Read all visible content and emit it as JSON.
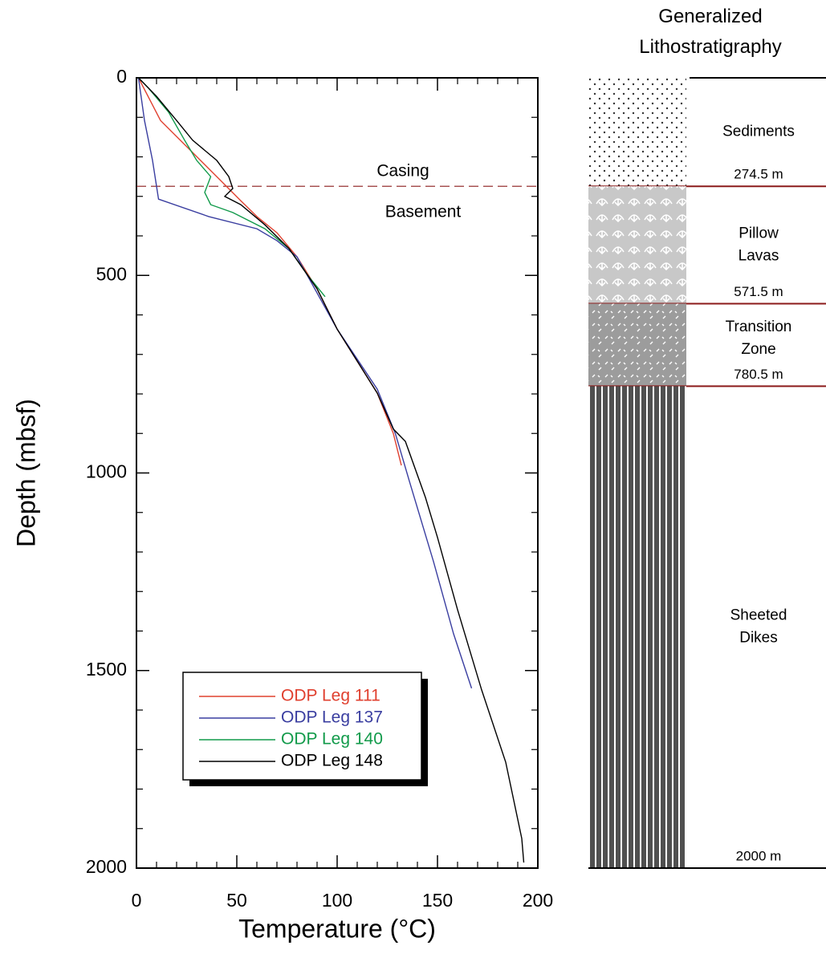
{
  "chart_data": [
    {
      "type": "line",
      "xlabel": "Temperature (°C)",
      "ylabel": "Depth (mbsf)",
      "xlim": [
        0,
        200
      ],
      "xticks": [
        0,
        50,
        100,
        150,
        200
      ],
      "xminorticks": [
        10,
        20,
        30,
        40,
        60,
        70,
        80,
        90,
        110,
        120,
        130,
        140,
        160,
        170,
        180,
        190
      ],
      "ylim": [
        0,
        2000
      ],
      "yticks": [
        0,
        500,
        1000,
        1500,
        2000
      ],
      "yminorticks": [
        100,
        200,
        300,
        400,
        600,
        700,
        800,
        900,
        1100,
        1200,
        1300,
        1400,
        1600,
        1700,
        1800,
        1900
      ],
      "y_inverted": true,
      "legend": "lower left",
      "hline": 274.5,
      "hline_color": "#8b1a1a",
      "annotations": [
        "Casing",
        "Basement"
      ],
      "series": [
        {
          "name": "ODP Leg 111",
          "color": "#e0402f",
          "x": [
            1,
            12,
            28,
            42,
            52,
            60,
            70,
            80,
            90,
            100,
            110,
            120,
            128,
            132
          ],
          "values": [
            0,
            108,
            189,
            260,
            311,
            351,
            392,
            453,
            534,
            636,
            717,
            798,
            900,
            981
          ]
        },
        {
          "name": "ODP Leg 137",
          "color": "#3a3ea0",
          "x": [
            1,
            4,
            8,
            11,
            36,
            60,
            70,
            80,
            100,
            120,
            129,
            136,
            148,
            158,
            167
          ],
          "values": [
            0,
            108,
            209,
            307,
            351,
            382,
            412,
            453,
            636,
            788,
            900,
            1021,
            1224,
            1407,
            1545
          ]
        },
        {
          "name": "ODP Leg 140",
          "color": "#119a4a",
          "x": [
            1,
            6,
            16,
            24,
            30,
            37,
            34,
            37,
            48,
            64,
            76,
            86,
            94
          ],
          "values": [
            0,
            26,
            87,
            158,
            209,
            250,
            290,
            321,
            341,
            382,
            432,
            504,
            554
          ]
        },
        {
          "name": "ODP Leg 148",
          "color": "#000000",
          "x": [
            1,
            10,
            20,
            28,
            40,
            46,
            48,
            44,
            52,
            64,
            76,
            90,
            100,
            120,
            128,
            134,
            144,
            150,
            160,
            172,
            184,
            192,
            193
          ],
          "values": [
            0,
            47,
            108,
            158,
            209,
            250,
            280,
            300,
            321,
            372,
            432,
            534,
            636,
            798,
            889,
            920,
            1062,
            1163,
            1346,
            1549,
            1732,
            1925,
            1986
          ]
        }
      ]
    },
    {
      "type": "lithostratigraphy",
      "title": "Generalized Lithostratigraphy",
      "ylim": [
        0,
        2000
      ],
      "y_inverted": true,
      "categories": [
        "Sediments",
        "Pillow Lavas",
        "Transition Zone",
        "Sheeted Dikes"
      ],
      "values": [
        274.5,
        571.5,
        780.5,
        2000
      ],
      "value_labels": [
        "274.5 m",
        "571.5 m",
        "780.5 m",
        "2000 m"
      ]
    }
  ]
}
